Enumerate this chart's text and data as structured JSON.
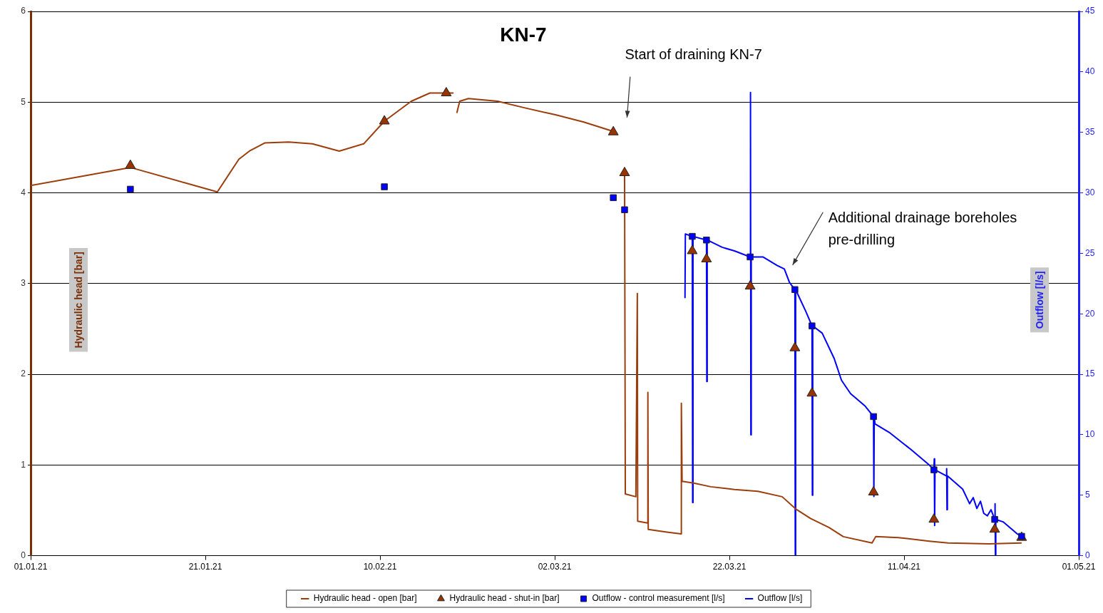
{
  "chart_data": {
    "type": "line",
    "title": "KN-7",
    "ylabel": "Hydraulic head [bar]",
    "y2label": "Outflow [l/s]",
    "xlim": [
      "2021-01-01",
      "2021-05-01"
    ],
    "xticks": [
      {
        "value": "2021-01-01",
        "label": "01.01.21"
      },
      {
        "value": "2021-01-21",
        "label": "21.01.21"
      },
      {
        "value": "2021-02-10",
        "label": "10.02.21"
      },
      {
        "value": "2021-03-02",
        "label": "02.03.21"
      },
      {
        "value": "2021-03-22",
        "label": "22.03.21"
      },
      {
        "value": "2021-04-11",
        "label": "11.04.21"
      },
      {
        "value": "2021-05-01",
        "label": "01.05.21"
      }
    ],
    "ylim": [
      0,
      6
    ],
    "yticks": [
      0,
      1,
      2,
      3,
      4,
      5,
      6
    ],
    "y2lim": [
      0,
      45
    ],
    "y2ticks": [
      0,
      5,
      10,
      15,
      20,
      25,
      30,
      35,
      40,
      45
    ],
    "grid": "y",
    "legend": "bottom",
    "annotations": [
      "Start of draining KN-7",
      "Additional drainage boreholes pre-drilling"
    ],
    "series": [
      {
        "name": "Hydraulic head - open [bar]",
        "type": "line",
        "color": "#9c3d0c",
        "marker": "none",
        "x": [
          "2021-01-01T00:00",
          "2021-01-12T10:00",
          "2021-01-22T09:00",
          "2021-01-24T20:00",
          "2021-01-26T01:00",
          "2021-01-27T19:00",
          "2021-01-30T13:00",
          "2021-02-02T06:00",
          "2021-02-05T08:00",
          "2021-02-08T03:00",
          "2021-02-10T12:00",
          "2021-02-13T14:00",
          "2021-02-15T17:00",
          "2021-02-18T10:00",
          "2021-02-18T14:00",
          "2021-02-18T19:00",
          "2021-02-19T03:00",
          "2021-02-20T03:00",
          "2021-02-23T11:00",
          "2021-02-26T10:00",
          "2021-03-02T02:00",
          "2021-03-05T08:00",
          "2021-03-08T07:00",
          "2021-03-08T17:00",
          "2021-03-09T12:00",
          "2021-03-10T00:00",
          "2021-03-10T02:00",
          "2021-03-11T07:00",
          "2021-03-11T11:00",
          "2021-03-11T12:00",
          "2021-03-12T15:00",
          "2021-03-12T16:00",
          "2021-03-12T17:00",
          "2021-03-14T20:00",
          "2021-03-16T11:00",
          "2021-03-16T12:00",
          "2021-03-16T14:00",
          "2021-03-17T22:00",
          "2021-03-19T21:00",
          "2021-03-22T14:00",
          "2021-03-25T06:00",
          "2021-03-28T01:00",
          "2021-03-29T16:00",
          "2021-03-31T07:00",
          "2021-04-02T10:00",
          "2021-04-04T01:00",
          "2021-04-07T08:00",
          "2021-04-07T18:00",
          "2021-04-10T08:00",
          "2021-04-13T21:00",
          "2021-04-16T01:00",
          "2021-04-20T17:00",
          "2021-04-24T11:00"
        ],
        "values": [
          4.08,
          4.28,
          4.01,
          4.37,
          4.46,
          4.55,
          4.56,
          4.54,
          4.46,
          4.54,
          4.79,
          5.01,
          5.1,
          5.1,
          null,
          4.88,
          5.01,
          5.04,
          5.01,
          4.94,
          4.86,
          4.78,
          4.69,
          4.67,
          null,
          4.22,
          0.68,
          0.65,
          2.89,
          0.38,
          0.36,
          1.8,
          0.29,
          0.26,
          0.24,
          1.68,
          0.82,
          0.8,
          0.76,
          0.73,
          0.71,
          0.65,
          0.51,
          0.41,
          0.31,
          0.21,
          0.14,
          0.21,
          0.2,
          0.16,
          0.14,
          0.13,
          0.14
        ]
      },
      {
        "name": "Hydraulic head - shut-in [bar]",
        "type": "scatter",
        "color": "#993300",
        "marker": "triangle",
        "x": [
          "2021-01-12T10:00",
          "2021-02-10T12:00",
          "2021-02-17T14:00",
          "2021-03-08T17:00",
          "2021-03-10T00:00",
          "2021-03-17T18:00",
          "2021-03-19T09:00",
          "2021-03-24T09:00",
          "2021-03-29T12:00",
          "2021-03-31T11:00",
          "2021-04-07T12:00",
          "2021-04-14T10:00",
          "2021-04-21T09:00",
          "2021-04-24T11:00"
        ],
        "values": [
          4.3,
          4.79,
          5.1,
          4.67,
          4.22,
          3.36,
          3.27,
          2.97,
          2.29,
          1.79,
          0.7,
          0.4,
          0.29,
          0.2
        ]
      },
      {
        "name": "Outflow - control measurement [l/s]",
        "type": "scatter",
        "axis": "y2",
        "color": "#0000ff",
        "marker": "square",
        "x": [
          "2021-01-12T10:00",
          "2021-02-10T12:00",
          "2021-03-08T17:00",
          "2021-03-10T00:00",
          "2021-03-17T18:00",
          "2021-03-19T09:00",
          "2021-03-24T09:00",
          "2021-03-29T12:00",
          "2021-03-31T11:00",
          "2021-04-07T12:00",
          "2021-04-14T10:00",
          "2021-04-21T09:00",
          "2021-04-24T11:00"
        ],
        "values": [
          30.3,
          30.5,
          29.6,
          28.6,
          26.4,
          26.1,
          24.7,
          22,
          19,
          11.5,
          7.1,
          3,
          1.6
        ]
      },
      {
        "name": "Outflow [l/s]",
        "type": "line",
        "axis": "y2",
        "color": "#0000ff",
        "marker": "none",
        "x": [
          "2021-03-16T22:00",
          "2021-03-16T23:00",
          "2021-03-17T18:00",
          "2021-03-17T19:00",
          "2021-03-17T20:00",
          "2021-03-19T09:00",
          "2021-03-19T10:00",
          "2021-03-19T11:00",
          "2021-03-21T04:00",
          "2021-03-22T14:00",
          "2021-03-24T09:00",
          "2021-03-24T10:00",
          "2021-03-24T11:00",
          "2021-03-24T12:00",
          "2021-03-25T20:00",
          "2021-03-27T11:00",
          "2021-03-28T07:00",
          "2021-03-28T21:00",
          "2021-03-29T12:00",
          "2021-03-29T13:00",
          "2021-03-29T14:00",
          "2021-03-30T18:00",
          "2021-03-31T11:00",
          "2021-03-31T12:00",
          "2021-03-31T13:00",
          "2021-04-01T15:00",
          "2021-04-03T00:00",
          "2021-04-03T20:00",
          "2021-04-04T21:00",
          "2021-04-06T12:00",
          "2021-04-07T12:00",
          "2021-04-07T13:00",
          "2021-04-07T14:00",
          "2021-04-07T16:00",
          "2021-04-09T07:00",
          "2021-04-11T18:00",
          "2021-04-13T21:00",
          "2021-04-14T10:00",
          "2021-04-14T11:00",
          "2021-04-14T12:00",
          "2021-04-14T13:00",
          "2021-04-15T20:00",
          "2021-04-15T21:00",
          "2021-04-15T22:00",
          "2021-04-15T23:00",
          "2021-04-17T17:00",
          "2021-04-18T12:00",
          "2021-04-18T22:00",
          "2021-04-19T08:00",
          "2021-04-19T18:00",
          "2021-04-20T03:00",
          "2021-04-20T13:00",
          "2021-04-20T23:00",
          "2021-04-21T09:00",
          "2021-04-21T10:00",
          "2021-04-21T11:00",
          "2021-04-21T12:00",
          "2021-04-22T08:00",
          "2021-04-23T23:00",
          "2021-04-24T11:00"
        ],
        "values": [
          21.3,
          26.6,
          26.4,
          4.4,
          26.4,
          26.1,
          14.4,
          26.1,
          25.5,
          25.2,
          24.7,
          38.3,
          10,
          24.7,
          24.7,
          24,
          23.7,
          22.6,
          22,
          0,
          22,
          20.2,
          19,
          5,
          19,
          18.4,
          16.3,
          14.5,
          13.4,
          12.4,
          11.5,
          4.9,
          11.5,
          10.9,
          10.2,
          8.8,
          7.5,
          7.1,
          8,
          2.5,
          7.1,
          6.6,
          7.2,
          3.8,
          6.6,
          5.5,
          4.3,
          4.8,
          3.9,
          4.5,
          3.5,
          3.3,
          3.8,
          3,
          4.3,
          0,
          3,
          2.8,
          1.8,
          1.6
        ]
      }
    ]
  }
}
